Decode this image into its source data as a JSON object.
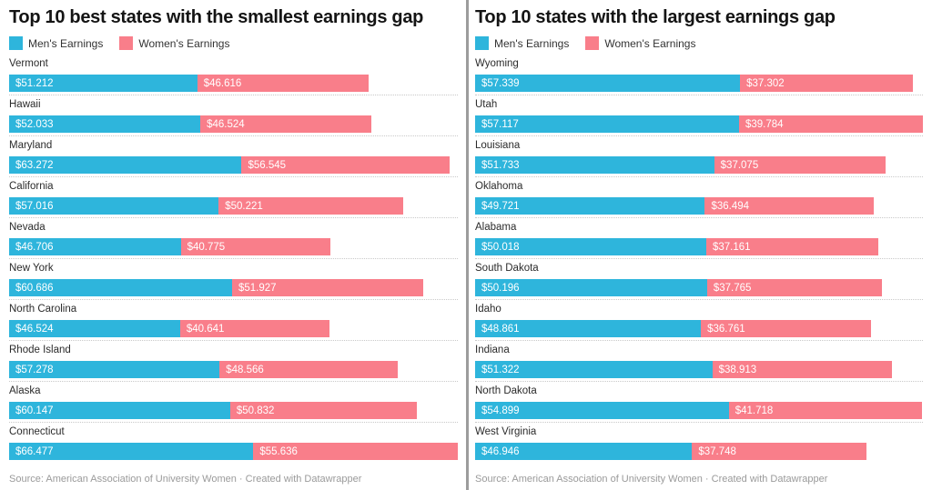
{
  "colors": {
    "men_bar": "#2eb5dc",
    "women_bar": "#f97e8a",
    "divider": "#9c9c9c",
    "title_text": "#141414",
    "state_label_text": "#2b2b2b",
    "bar_value_text": "#ffffff",
    "separator_dotted": "#c9c9c9",
    "footer_text": "#9a9a9a"
  },
  "chart_data": [
    {
      "type": "bar",
      "orientation": "horizontal",
      "stacked": true,
      "grid": false,
      "legend_position": "top-left",
      "title": "Top 10 best states with the smallest earnings gap",
      "categories": [
        "Vermont",
        "Hawaii",
        "Maryland",
        "California",
        "Nevada",
        "New York",
        "North Carolina",
        "Rhode Island",
        "Alaska",
        "Connecticut"
      ],
      "series": [
        {
          "name": "Men's Earnings",
          "color": "#2eb5dc",
          "values": [
            51212,
            52033,
            63272,
            57016,
            46706,
            60686,
            46524,
            57278,
            60147,
            66477
          ],
          "labels": [
            "$51.212",
            "$52.033",
            "$63.272",
            "$57.016",
            "$46.706",
            "$60.686",
            "$46.524",
            "$57.278",
            "$60.147",
            "$66.477"
          ]
        },
        {
          "name": "Women's Earnings",
          "color": "#f97e8a",
          "values": [
            46616,
            46524,
            56545,
            50221,
            40775,
            51927,
            40641,
            48566,
            50832,
            55636
          ],
          "labels": [
            "$46.616",
            "$46.524",
            "$56.545",
            "$50.221",
            "$40.775",
            "$51.927",
            "$40.641",
            "$48.566",
            "$50.832",
            "$55.636"
          ]
        }
      ],
      "x_axis": {
        "visible": false,
        "note": "bars scaled so the largest stacked total fills the panel width"
      },
      "footer": "Source: American Association of University Women  · Created with Datawrapper"
    },
    {
      "type": "bar",
      "orientation": "horizontal",
      "stacked": true,
      "grid": false,
      "legend_position": "top-left",
      "title": "Top 10 states with the largest earnings gap",
      "categories": [
        "Wyoming",
        "Utah",
        "Louisiana",
        "Oklahoma",
        "Alabama",
        "South Dakota",
        "Idaho",
        "Indiana",
        "North Dakota",
        "West Virginia"
      ],
      "series": [
        {
          "name": "Men's Earnings",
          "color": "#2eb5dc",
          "values": [
            57339,
            57117,
            51733,
            49721,
            50018,
            50196,
            48861,
            51322,
            54899,
            46946
          ],
          "labels": [
            "$57.339",
            "$57.117",
            "$51.733",
            "$49.721",
            "$50.018",
            "$50.196",
            "$48.861",
            "$51.322",
            "$54.899",
            "$46.946"
          ]
        },
        {
          "name": "Women's Earnings",
          "color": "#f97e8a",
          "values": [
            37302,
            39784,
            37075,
            36494,
            37161,
            37765,
            36761,
            38913,
            41718,
            37748
          ],
          "labels": [
            "$37.302",
            "$39.784",
            "$37.075",
            "$36.494",
            "$37.161",
            "$37.765",
            "$36.761",
            "$38.913",
            "$41.718",
            "$37.748"
          ]
        }
      ],
      "x_axis": {
        "visible": false,
        "note": "bars scaled so the largest stacked total fills the panel width"
      },
      "footer": "Source: American Association of University Women  · Created with Datawrapper"
    }
  ]
}
